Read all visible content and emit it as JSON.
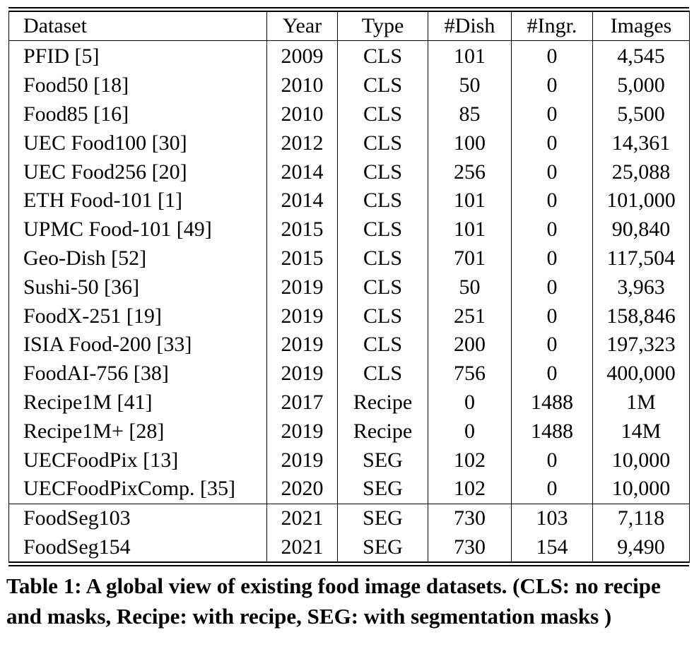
{
  "table": {
    "headers": [
      "Dataset",
      "Year",
      "Type",
      "#Dish",
      "#Ingr.",
      "Images"
    ],
    "rows": [
      [
        "PFID [5]",
        "2009",
        "CLS",
        "101",
        "0",
        "4,545"
      ],
      [
        "Food50 [18]",
        "2010",
        "CLS",
        "50",
        "0",
        "5,000"
      ],
      [
        "Food85 [16]",
        "2010",
        "CLS",
        "85",
        "0",
        "5,500"
      ],
      [
        "UEC Food100 [30]",
        "2012",
        "CLS",
        "100",
        "0",
        "14,361"
      ],
      [
        "UEC Food256 [20]",
        "2014",
        "CLS",
        "256",
        "0",
        "25,088"
      ],
      [
        "ETH Food-101 [1]",
        "2014",
        "CLS",
        "101",
        "0",
        "101,000"
      ],
      [
        "UPMC Food-101 [49]",
        "2015",
        "CLS",
        "101",
        "0",
        "90,840"
      ],
      [
        "Geo-Dish [52]",
        "2015",
        "CLS",
        "701",
        "0",
        "117,504"
      ],
      [
        "Sushi-50 [36]",
        "2019",
        "CLS",
        "50",
        "0",
        "3,963"
      ],
      [
        "FoodX-251 [19]",
        "2019",
        "CLS",
        "251",
        "0",
        "158,846"
      ],
      [
        "ISIA Food-200 [33]",
        "2019",
        "CLS",
        "200",
        "0",
        "197,323"
      ],
      [
        "FoodAI-756 [38]",
        "2019",
        "CLS",
        "756",
        "0",
        "400,000"
      ],
      [
        "Recipe1M [41]",
        "2017",
        "Recipe",
        "0",
        "1488",
        "1M"
      ],
      [
        "Recipe1M+ [28]",
        "2019",
        "Recipe",
        "0",
        "1488",
        "14M"
      ],
      [
        "UECFoodPix [13]",
        "2019",
        "SEG",
        "102",
        "0",
        "10,000"
      ],
      [
        "UECFoodPixComp. [35]",
        "2020",
        "SEG",
        "102",
        "0",
        "10,000"
      ],
      [
        "FoodSeg103",
        "2021",
        "SEG",
        "730",
        "103",
        "7,118"
      ],
      [
        "FoodSeg154",
        "2021",
        "SEG",
        "730",
        "154",
        "9,490"
      ]
    ]
  },
  "caption": "Table 1: A global view of existing food image datasets. (CLS: no recipe and masks, Recipe: with recipe, SEG: with segmentation masks )"
}
